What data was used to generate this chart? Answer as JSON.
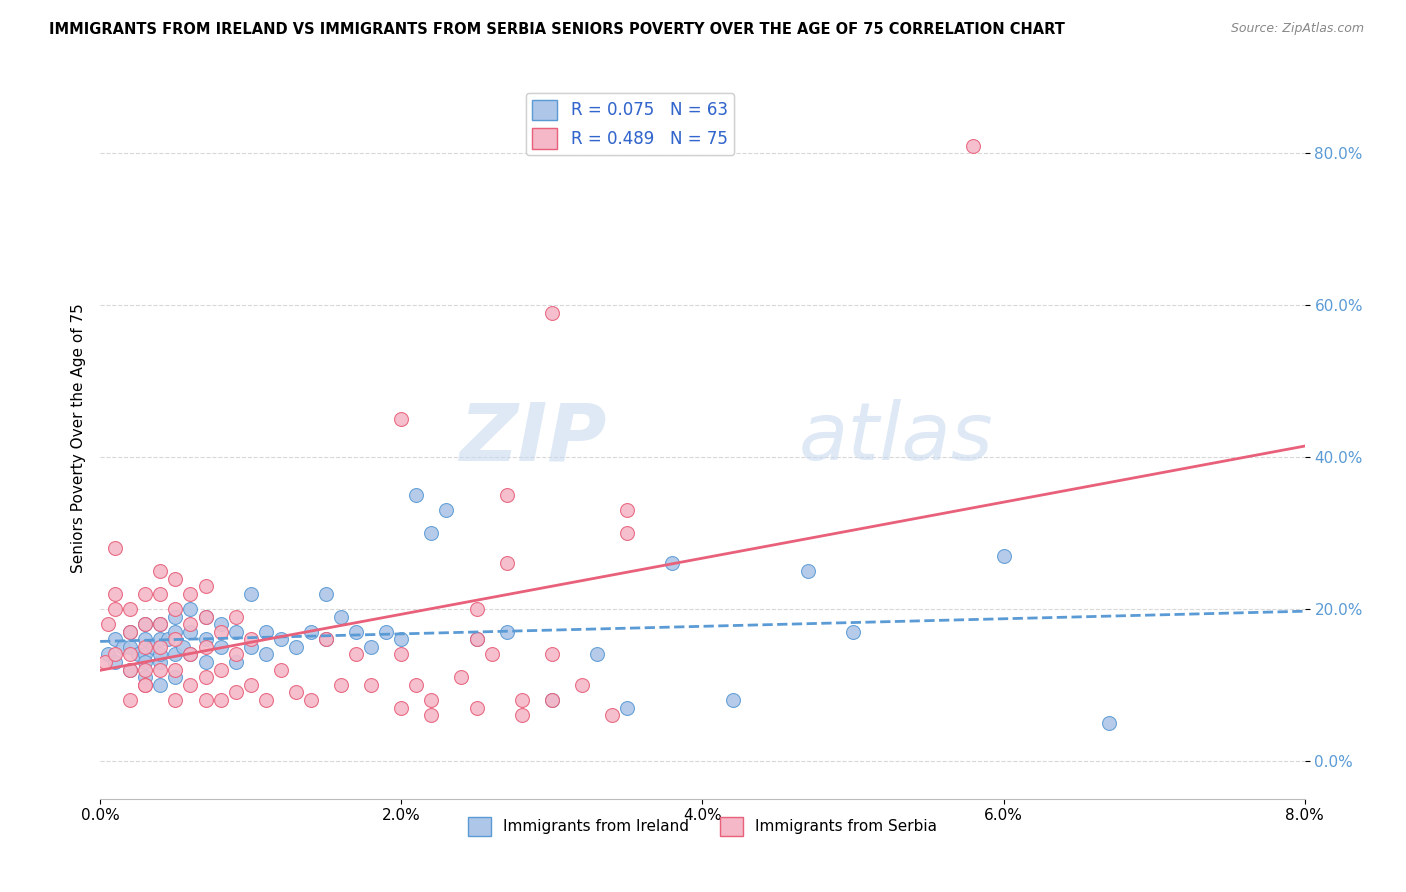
{
  "title": "IMMIGRANTS FROM IRELAND VS IMMIGRANTS FROM SERBIA SENIORS POVERTY OVER THE AGE OF 75 CORRELATION CHART",
  "source": "Source: ZipAtlas.com",
  "ylabel": "Seniors Poverty Over the Age of 75",
  "xlim": [
    0.0,
    0.08
  ],
  "ylim": [
    -0.05,
    0.9
  ],
  "yticks": [
    0.0,
    0.2,
    0.4,
    0.6,
    0.8
  ],
  "xticks": [
    0.0,
    0.02,
    0.04,
    0.06,
    0.08
  ],
  "background_color": "#ffffff",
  "grid_color": "#d8d8d8",
  "ireland_color": "#aec6e8",
  "ireland_edge_color": "#5b9bd5",
  "serbia_color": "#f4b8c8",
  "serbia_edge_color": "#e8607a",
  "ireland_R": 0.075,
  "ireland_N": 63,
  "serbia_R": 0.489,
  "serbia_N": 75,
  "legend_R_color": "#3366cc",
  "legend_N_color": "#33aa33",
  "ireland_trend_color": "#5b9bd5",
  "serbia_trend_color": "#e8607a",
  "watermark_zip": "ZIP",
  "watermark_atlas": "atlas",
  "ireland_points_x": [
    0.0005,
    0.001,
    0.001,
    0.0015,
    0.002,
    0.002,
    0.002,
    0.0025,
    0.003,
    0.003,
    0.003,
    0.003,
    0.003,
    0.0035,
    0.004,
    0.004,
    0.004,
    0.004,
    0.004,
    0.0045,
    0.005,
    0.005,
    0.005,
    0.005,
    0.0055,
    0.006,
    0.006,
    0.006,
    0.007,
    0.007,
    0.007,
    0.008,
    0.008,
    0.009,
    0.009,
    0.01,
    0.01,
    0.011,
    0.011,
    0.012,
    0.013,
    0.014,
    0.015,
    0.015,
    0.016,
    0.017,
    0.018,
    0.019,
    0.02,
    0.021,
    0.022,
    0.023,
    0.025,
    0.027,
    0.03,
    0.033,
    0.035,
    0.038,
    0.042,
    0.047,
    0.05,
    0.06,
    0.067
  ],
  "ireland_points_y": [
    0.14,
    0.13,
    0.16,
    0.15,
    0.12,
    0.15,
    0.17,
    0.14,
    0.11,
    0.14,
    0.16,
    0.18,
    0.13,
    0.15,
    0.1,
    0.13,
    0.16,
    0.18,
    0.14,
    0.16,
    0.11,
    0.14,
    0.17,
    0.19,
    0.15,
    0.14,
    0.17,
    0.2,
    0.13,
    0.16,
    0.19,
    0.15,
    0.18,
    0.13,
    0.17,
    0.15,
    0.22,
    0.14,
    0.17,
    0.16,
    0.15,
    0.17,
    0.16,
    0.22,
    0.19,
    0.17,
    0.15,
    0.17,
    0.16,
    0.35,
    0.3,
    0.33,
    0.16,
    0.17,
    0.08,
    0.14,
    0.07,
    0.26,
    0.08,
    0.25,
    0.17,
    0.27,
    0.05
  ],
  "serbia_points_x": [
    0.0003,
    0.0005,
    0.001,
    0.001,
    0.001,
    0.001,
    0.002,
    0.002,
    0.002,
    0.002,
    0.002,
    0.003,
    0.003,
    0.003,
    0.003,
    0.003,
    0.003,
    0.004,
    0.004,
    0.004,
    0.004,
    0.004,
    0.005,
    0.005,
    0.005,
    0.005,
    0.005,
    0.006,
    0.006,
    0.006,
    0.006,
    0.007,
    0.007,
    0.007,
    0.007,
    0.007,
    0.008,
    0.008,
    0.008,
    0.009,
    0.009,
    0.009,
    0.01,
    0.01,
    0.011,
    0.012,
    0.013,
    0.014,
    0.015,
    0.016,
    0.017,
    0.018,
    0.02,
    0.021,
    0.022,
    0.024,
    0.026,
    0.028,
    0.03,
    0.032,
    0.034,
    0.035,
    0.02,
    0.022,
    0.025,
    0.028,
    0.03,
    0.025,
    0.027,
    0.03,
    0.035,
    0.02,
    0.025,
    0.027,
    0.058
  ],
  "serbia_points_y": [
    0.13,
    0.18,
    0.14,
    0.2,
    0.22,
    0.28,
    0.12,
    0.14,
    0.17,
    0.2,
    0.08,
    0.1,
    0.12,
    0.15,
    0.18,
    0.22,
    0.1,
    0.12,
    0.15,
    0.18,
    0.22,
    0.25,
    0.08,
    0.12,
    0.16,
    0.2,
    0.24,
    0.1,
    0.14,
    0.18,
    0.22,
    0.08,
    0.11,
    0.15,
    0.19,
    0.23,
    0.08,
    0.12,
    0.17,
    0.09,
    0.14,
    0.19,
    0.1,
    0.16,
    0.08,
    0.12,
    0.09,
    0.08,
    0.16,
    0.1,
    0.14,
    0.1,
    0.14,
    0.1,
    0.08,
    0.11,
    0.14,
    0.08,
    0.14,
    0.1,
    0.06,
    0.33,
    0.07,
    0.06,
    0.07,
    0.06,
    0.08,
    0.2,
    0.35,
    0.59,
    0.3,
    0.45,
    0.16,
    0.26,
    0.81
  ]
}
